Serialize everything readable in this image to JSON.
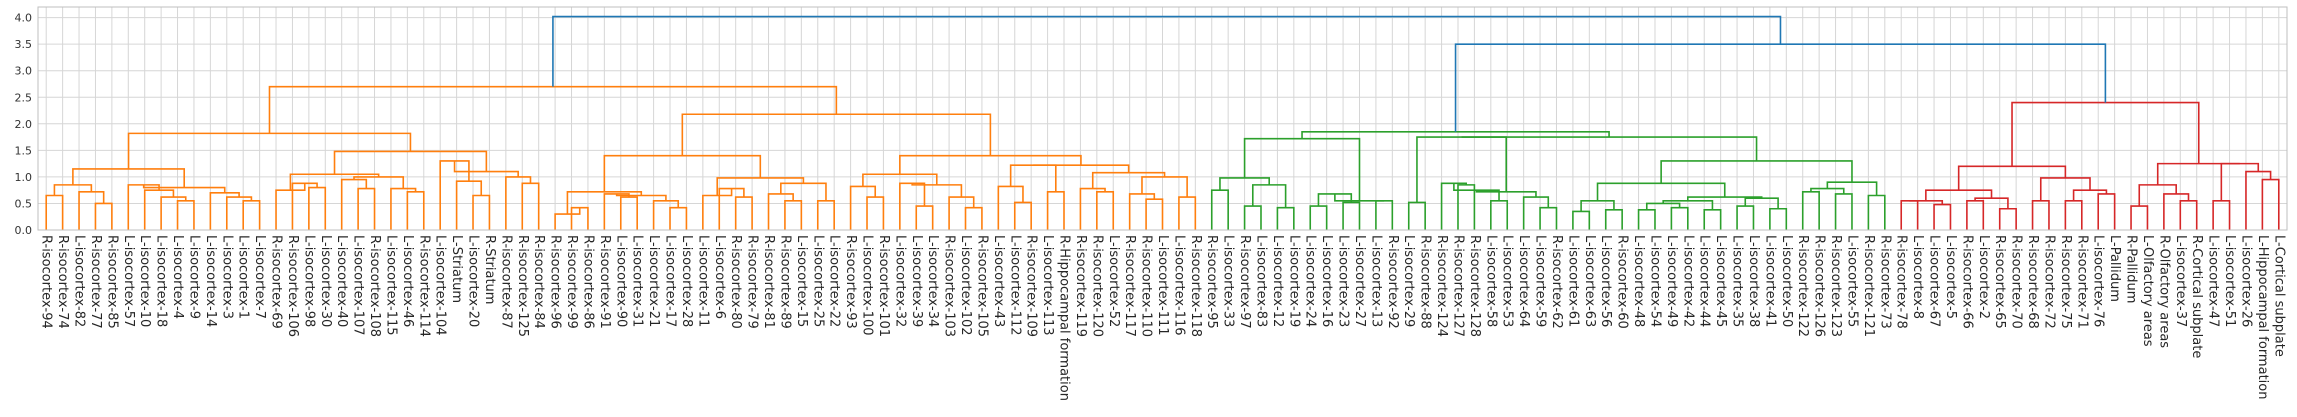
{
  "chart_data": {
    "type": "dendrogram",
    "title": "",
    "xlabel": "",
    "ylabel": "",
    "ylim": [
      0,
      4.2
    ],
    "yticks": [
      "0.0",
      "0.5",
      "1.0",
      "1.5",
      "2.0",
      "2.5",
      "3.0",
      "3.5",
      "4.0"
    ],
    "grid": true,
    "colors": {
      "orange": "#ff7f0e",
      "green": "#2ca02c",
      "red": "#d62728",
      "blue": "#1f77b4",
      "grid": "#d6d6d6",
      "frame": "#bfbfbf"
    },
    "leaves": [
      "R-isocortex-94",
      "R-isocortex-74",
      "L-isocortex-82",
      "R-isocortex-77",
      "R-isocortex-85",
      "L-isocortex-57",
      "L-isocortex-10",
      "L-isocortex-18",
      "L-isocortex-4",
      "L-isocortex-9",
      "L-isocortex-14",
      "L-isocortex-3",
      "L-isocortex-1",
      "L-isocortex-7",
      "R-isocortex-69",
      "R-isocortex-106",
      "L-isocortex-98",
      "L-isocortex-30",
      "L-isocortex-40",
      "L-isocortex-107",
      "R-isocortex-108",
      "L-isocortex-115",
      "L-isocortex-46",
      "R-isocortex-114",
      "L-isocortex-104",
      "L-Striatum",
      "L-isocortex-20",
      "R-Striatum",
      "R-isocortex-87",
      "R-isocortex-125",
      "R-isocortex-84",
      "R-isocortex-96",
      "R-isocortex-99",
      "R-isocortex-86",
      "R-isocortex-91",
      "L-isocortex-90",
      "L-isocortex-31",
      "L-isocortex-21",
      "L-isocortex-17",
      "L-isocortex-28",
      "L-isocortex-11",
      "L-isocortex-6",
      "R-isocortex-80",
      "R-isocortex-79",
      "R-isocortex-81",
      "R-isocortex-89",
      "L-isocortex-15",
      "L-isocortex-25",
      "L-isocortex-22",
      "R-isocortex-93",
      "L-isocortex-100",
      "R-isocortex-101",
      "L-isocortex-32",
      "L-isocortex-39",
      "L-isocortex-34",
      "R-isocortex-103",
      "L-isocortex-102",
      "R-isocortex-105",
      "L-isocortex-43",
      "L-isocortex-112",
      "R-isocortex-109",
      "L-isocortex-113",
      "R-Hippocampal formation",
      "R-isocortex-119",
      "R-isocortex-120",
      "L-isocortex-52",
      "R-isocortex-117",
      "R-isocortex-110",
      "L-isocortex-111",
      "L-isocortex-116",
      "R-isocortex-118",
      "R-isocortex-95",
      "L-isocortex-33",
      "R-isocortex-97",
      "L-isocortex-83",
      "L-isocortex-12",
      "L-isocortex-19",
      "L-isocortex-24",
      "L-isocortex-16",
      "L-isocortex-23",
      "L-isocortex-27",
      "L-isocortex-13",
      "R-isocortex-92",
      "L-isocortex-29",
      "R-isocortex-88",
      "R-isocortex-124",
      "R-isocortex-127",
      "R-isocortex-128",
      "L-isocortex-58",
      "L-isocortex-53",
      "L-isocortex-64",
      "L-isocortex-59",
      "R-isocortex-62",
      "L-isocortex-61",
      "L-isocortex-63",
      "L-isocortex-56",
      "R-isocortex-60",
      "L-isocortex-48",
      "L-isocortex-54",
      "L-isocortex-49",
      "L-isocortex-42",
      "L-isocortex-44",
      "L-isocortex-45",
      "L-isocortex-35",
      "L-isocortex-38",
      "L-isocortex-41",
      "L-isocortex-50",
      "R-isocortex-122",
      "R-isocortex-126",
      "R-isocortex-123",
      "L-isocortex-55",
      "R-isocortex-121",
      "R-isocortex-73",
      "R-isocortex-78",
      "L-isocortex-8",
      "L-isocortex-67",
      "L-isocortex-5",
      "R-isocortex-66",
      "L-isocortex-2",
      "R-isocortex-65",
      "R-isocortex-70",
      "R-isocortex-68",
      "R-isocortex-72",
      "R-isocortex-75",
      "R-isocortex-71",
      "L-isocortex-76",
      "L-Pallidum",
      "R-Pallidum",
      "L-Olfactory areas",
      "R-Olfactory areas",
      "L-isocortex-37",
      "R-Cortical subplate",
      "L-isocortex-47",
      "L-isocortex-51",
      "L-isocortex-26",
      "L-Hippocampal formation",
      "L-Cortical subplate"
    ],
    "links": [
      {
        "a": 0,
        "b": 1,
        "h": 0.65,
        "c": "orange"
      },
      {
        "a": 3,
        "b": 4,
        "h": 0.5,
        "c": "orange"
      },
      {
        "a": 2,
        "b": "n1",
        "h": 0.72,
        "c": "orange"
      },
      {
        "a": "n0",
        "b": "n2",
        "h": 0.85,
        "c": "orange"
      },
      {
        "a": 8,
        "b": 9,
        "h": 0.55,
        "c": "orange"
      },
      {
        "a": 7,
        "b": "n4",
        "h": 0.62,
        "c": "orange"
      },
      {
        "a": 6,
        "b": "n5",
        "h": 0.75,
        "c": "orange"
      },
      {
        "a": 5,
        "b": "n6",
        "h": 0.85,
        "c": "orange"
      },
      {
        "a": 12,
        "b": 13,
        "h": 0.55,
        "c": "orange"
      },
      {
        "a": 11,
        "b": "n8",
        "h": 0.62,
        "c": "orange"
      },
      {
        "a": 10,
        "b": "n9",
        "h": 0.7,
        "c": "orange"
      },
      {
        "a": "n7",
        "b": "n10",
        "h": 0.8,
        "c": "orange"
      },
      {
        "a": "n3",
        "b": "n11",
        "h": 1.15,
        "c": "orange"
      },
      {
        "a": 16,
        "b": 17,
        "h": 0.8,
        "c": "orange"
      },
      {
        "a": 15,
        "b": "n13",
        "h": 0.88,
        "c": "orange"
      },
      {
        "a": 14,
        "b": "n14",
        "h": 0.75,
        "c": "orange"
      },
      {
        "a": 19,
        "b": 20,
        "h": 0.78,
        "c": "orange"
      },
      {
        "a": 18,
        "b": "n16",
        "h": 0.95,
        "c": "orange"
      },
      {
        "a": 22,
        "b": 23,
        "h": 0.72,
        "c": "orange"
      },
      {
        "a": 21,
        "b": "n18",
        "h": 0.78,
        "c": "orange"
      },
      {
        "a": "n17",
        "b": "n19",
        "h": 1.0,
        "c": "orange"
      },
      {
        "a": "n15",
        "b": "n20",
        "h": 1.05,
        "c": "orange"
      },
      {
        "a": 26,
        "b": 27,
        "h": 0.65,
        "c": "orange"
      },
      {
        "a": 25,
        "b": "n22",
        "h": 0.92,
        "c": "orange"
      },
      {
        "a": 24,
        "b": "n23",
        "h": 1.3,
        "c": "orange"
      },
      {
        "a": 29,
        "b": 30,
        "h": 0.88,
        "c": "orange"
      },
      {
        "a": 28,
        "b": "n25",
        "h": 1.0,
        "c": "orange"
      },
      {
        "a": "n24",
        "b": "n26",
        "h": 1.1,
        "c": "orange"
      },
      {
        "a": "n21",
        "b": "n27",
        "h": 1.48,
        "c": "orange"
      },
      {
        "a": "n12",
        "b": "n28",
        "h": 1.82,
        "c": "orange"
      },
      {
        "a": 32,
        "b": 33,
        "h": 0.42,
        "c": "orange"
      },
      {
        "a": 31,
        "b": "n30",
        "h": 0.3,
        "c": "orange"
      },
      {
        "a": 35,
        "b": 36,
        "h": 0.62,
        "c": "orange"
      },
      {
        "a": 34,
        "b": "n32",
        "h": 0.68,
        "c": "orange"
      },
      {
        "a": 38,
        "b": 39,
        "h": 0.42,
        "c": "orange"
      },
      {
        "a": 37,
        "b": "n34",
        "h": 0.55,
        "c": "orange"
      },
      {
        "a": "n33",
        "b": "n35",
        "h": 0.65,
        "c": "orange"
      },
      {
        "a": "n31",
        "b": "n36",
        "h": 0.72,
        "c": "orange"
      },
      {
        "a": 42,
        "b": 43,
        "h": 0.62,
        "c": "orange"
      },
      {
        "a": 41,
        "b": "n38",
        "h": 0.78,
        "c": "orange"
      },
      {
        "a": 40,
        "b": "n39",
        "h": 0.65,
        "c": "orange"
      },
      {
        "a": 45,
        "b": 46,
        "h": 0.55,
        "c": "orange"
      },
      {
        "a": 44,
        "b": "n41",
        "h": 0.68,
        "c": "orange"
      },
      {
        "a": 47,
        "b": 48,
        "h": 0.55,
        "c": "orange"
      },
      {
        "a": "n42",
        "b": "n43",
        "h": 0.88,
        "c": "orange"
      },
      {
        "a": "n40",
        "b": "n44",
        "h": 0.98,
        "c": "orange"
      },
      {
        "a": "n37",
        "b": "n45",
        "h": 1.4,
        "c": "orange"
      },
      {
        "a": 50,
        "b": 51,
        "h": 0.62,
        "c": "orange"
      },
      {
        "a": 49,
        "b": "n47",
        "h": 0.82,
        "c": "orange"
      },
      {
        "a": 53,
        "b": 54,
        "h": 0.45,
        "c": "orange"
      },
      {
        "a": 52,
        "b": "n49",
        "h": 0.88,
        "c": "orange"
      },
      {
        "a": 56,
        "b": 57,
        "h": 0.42,
        "c": "orange"
      },
      {
        "a": 55,
        "b": "n51",
        "h": 0.62,
        "c": "orange"
      },
      {
        "a": "n50",
        "b": "n52",
        "h": 0.85,
        "c": "orange"
      },
      {
        "a": "n48",
        "b": "n53",
        "h": 1.05,
        "c": "orange"
      },
      {
        "a": 59,
        "b": 60,
        "h": 0.52,
        "c": "orange"
      },
      {
        "a": 58,
        "b": "n55",
        "h": 0.82,
        "c": "orange"
      },
      {
        "a": 61,
        "b": 62,
        "h": 0.72,
        "c": "orange"
      },
      {
        "a": "n56",
        "b": "n57",
        "h": 1.22,
        "c": "orange"
      },
      {
        "a": 64,
        "b": 65,
        "h": 0.72,
        "c": "orange"
      },
      {
        "a": 63,
        "b": "n59",
        "h": 0.78,
        "c": "orange"
      },
      {
        "a": 67,
        "b": 68,
        "h": 0.58,
        "c": "orange"
      },
      {
        "a": 66,
        "b": "n61",
        "h": 0.68,
        "c": "orange"
      },
      {
        "a": 69,
        "b": 70,
        "h": 0.62,
        "c": "orange"
      },
      {
        "a": "n62",
        "b": "n63",
        "h": 1.0,
        "c": "orange"
      },
      {
        "a": "n60",
        "b": "n64",
        "h": 1.08,
        "c": "orange"
      },
      {
        "a": "n58",
        "b": "n65",
        "h": 1.22,
        "c": "orange"
      },
      {
        "a": "n54",
        "b": "n66",
        "h": 1.4,
        "c": "orange"
      },
      {
        "a": "n46",
        "b": "n67",
        "h": 2.18,
        "c": "orange"
      },
      {
        "a": "n29",
        "b": "n68",
        "h": 2.7,
        "c": "orange"
      },
      {
        "a": 71,
        "b": 72,
        "h": 0.75,
        "c": "green"
      },
      {
        "a": 73,
        "b": 74,
        "h": 0.45,
        "c": "green"
      },
      {
        "a": 75,
        "b": 76,
        "h": 0.42,
        "c": "green"
      },
      {
        "a": "n71",
        "b": "n72",
        "h": 0.85,
        "c": "green"
      },
      {
        "a": "n70",
        "b": "n73",
        "h": 0.98,
        "c": "green"
      },
      {
        "a": 77,
        "b": 78,
        "h": 0.45,
        "c": "green"
      },
      {
        "a": 79,
        "b": 80,
        "h": 0.52,
        "c": "green"
      },
      {
        "a": "n75",
        "b": "n76",
        "h": 0.68,
        "c": "green"
      },
      {
        "a": 81,
        "b": 82,
        "h": 0.55,
        "c": "green"
      },
      {
        "a": "n77",
        "b": "n78",
        "h": 0.55,
        "c": "green"
      },
      {
        "a": "n74",
        "b": "n79",
        "h": 1.72,
        "c": "green"
      },
      {
        "a": 83,
        "b": 84,
        "h": 0.52,
        "c": "green"
      },
      {
        "a": 86,
        "b": 87,
        "h": 0.85,
        "c": "green"
      },
      {
        "a": 85,
        "b": "n82",
        "h": 0.88,
        "c": "green"
      },
      {
        "a": 88,
        "b": 89,
        "h": 0.55,
        "c": "green"
      },
      {
        "a": "n83",
        "b": "n84",
        "h": 0.75,
        "c": "green"
      },
      {
        "a": 91,
        "b": 92,
        "h": 0.42,
        "c": "green"
      },
      {
        "a": 90,
        "b": "n86",
        "h": 0.62,
        "c": "green"
      },
      {
        "a": "n85",
        "b": "n87",
        "h": 0.72,
        "c": "green"
      },
      {
        "a": "n81",
        "b": "n88",
        "h": 1.75,
        "c": "green"
      },
      {
        "a": 93,
        "b": 94,
        "h": 0.35,
        "c": "green"
      },
      {
        "a": 95,
        "b": 96,
        "h": 0.38,
        "c": "green"
      },
      {
        "a": "n90",
        "b": "n91",
        "h": 0.55,
        "c": "green"
      },
      {
        "a": 97,
        "b": 98,
        "h": 0.38,
        "c": "green"
      },
      {
        "a": 99,
        "b": 100,
        "h": 0.42,
        "c": "green"
      },
      {
        "a": "n93",
        "b": "n94",
        "h": 0.5,
        "c": "green"
      },
      {
        "a": 101,
        "b": 102,
        "h": 0.38,
        "c": "green"
      },
      {
        "a": "n95",
        "b": "n96",
        "h": 0.55,
        "c": "green"
      },
      {
        "a": 103,
        "b": 104,
        "h": 0.45,
        "c": "green"
      },
      {
        "a": 105,
        "b": 106,
        "h": 0.4,
        "c": "green"
      },
      {
        "a": "n98",
        "b": "n99",
        "h": 0.6,
        "c": "green"
      },
      {
        "a": "n97",
        "b": "n100",
        "h": 0.62,
        "c": "green"
      },
      {
        "a": "n92",
        "b": "n101",
        "h": 0.88,
        "c": "green"
      },
      {
        "a": 107,
        "b": 108,
        "h": 0.72,
        "c": "green"
      },
      {
        "a": 109,
        "b": 110,
        "h": 0.68,
        "c": "green"
      },
      {
        "a": "n103",
        "b": "n104",
        "h": 0.78,
        "c": "green"
      },
      {
        "a": 111,
        "b": 112,
        "h": 0.65,
        "c": "green"
      },
      {
        "a": "n105",
        "b": "n106",
        "h": 0.9,
        "c": "green"
      },
      {
        "a": "n102",
        "b": "n107",
        "h": 1.3,
        "c": "green"
      },
      {
        "a": "n89",
        "b": "n108",
        "h": 1.75,
        "c": "green"
      },
      {
        "a": "n80",
        "b": "n109",
        "h": 1.85,
        "c": "green"
      },
      {
        "a": 113,
        "b": 114,
        "h": 0.55,
        "c": "red"
      },
      {
        "a": 115,
        "b": 116,
        "h": 0.48,
        "c": "red"
      },
      {
        "a": "n111",
        "b": "n112",
        "h": 0.55,
        "c": "red"
      },
      {
        "a": 117,
        "b": 118,
        "h": 0.55,
        "c": "red"
      },
      {
        "a": 119,
        "b": 120,
        "h": 0.4,
        "c": "red"
      },
      {
        "a": "n114",
        "b": "n115",
        "h": 0.6,
        "c": "red"
      },
      {
        "a": "n113",
        "b": "n116",
        "h": 0.75,
        "c": "red"
      },
      {
        "a": 121,
        "b": 122,
        "h": 0.55,
        "c": "red"
      },
      {
        "a": 123,
        "b": 124,
        "h": 0.55,
        "c": "red"
      },
      {
        "a": 125,
        "b": 126,
        "h": 0.68,
        "c": "red"
      },
      {
        "a": "n119",
        "b": "n120",
        "h": 0.75,
        "c": "red"
      },
      {
        "a": "n118",
        "b": "n121",
        "h": 0.98,
        "c": "red"
      },
      {
        "a": "n117",
        "b": "n122",
        "h": 1.2,
        "c": "red"
      },
      {
        "a": 127,
        "b": 128,
        "h": 0.45,
        "c": "red"
      },
      {
        "a": 130,
        "b": 131,
        "h": 0.55,
        "c": "red"
      },
      {
        "a": 129,
        "b": "n125",
        "h": 0.68,
        "c": "red"
      },
      {
        "a": "n124",
        "b": "n126",
        "h": 0.85,
        "c": "red"
      },
      {
        "a": 132,
        "b": 133,
        "h": 0.55,
        "c": "red"
      },
      {
        "a": 135,
        "b": 136,
        "h": 0.95,
        "c": "red"
      },
      {
        "a": 134,
        "b": "n129",
        "h": 1.1,
        "c": "red"
      },
      {
        "a": "n128",
        "b": "n130",
        "h": 1.25,
        "c": "red"
      },
      {
        "a": "n127",
        "b": "n131",
        "h": 1.25,
        "c": "red"
      },
      {
        "a": "n123",
        "b": "n132",
        "h": 2.4,
        "c": "red"
      },
      {
        "a": "n110",
        "b": "n133",
        "h": 3.5,
        "c": "blue"
      },
      {
        "a": "n69",
        "b": "n134",
        "h": 4.02,
        "c": "blue"
      }
    ]
  }
}
